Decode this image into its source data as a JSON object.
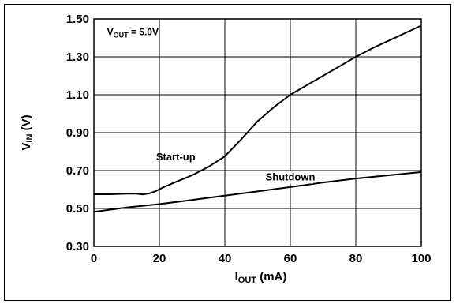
{
  "chart_data": {
    "type": "line",
    "title": "",
    "xlabel": {
      "main": "I",
      "sub": "OUT",
      "unit": " (mA)"
    },
    "ylabel": {
      "main": "V",
      "sub": "IN",
      "unit": " (V)"
    },
    "xlim": [
      0,
      100
    ],
    "ylim": [
      0.3,
      1.5
    ],
    "x_ticks": [
      0,
      20,
      40,
      60,
      80,
      100
    ],
    "x_tick_labels": [
      "0",
      "20",
      "40",
      "60",
      "80",
      "100"
    ],
    "y_ticks": [
      0.3,
      0.5,
      0.7,
      0.9,
      1.1,
      1.3,
      1.5
    ],
    "y_tick_labels": [
      "0.30",
      "0.50",
      "0.70",
      "0.90",
      "1.10",
      "1.30",
      "1.50"
    ],
    "grid": true,
    "annotation": {
      "main": "V",
      "sub": "OUT",
      "rest": " = 5.0V"
    },
    "series": [
      {
        "name": "Start-up",
        "color": "#000000",
        "x": [
          0,
          5,
          10,
          13,
          15,
          17,
          19,
          21,
          25,
          30,
          35,
          40,
          45,
          50,
          55,
          60,
          65,
          70,
          75,
          80,
          85,
          90,
          95,
          100
        ],
        "y": [
          0.575,
          0.575,
          0.578,
          0.578,
          0.574,
          0.58,
          0.592,
          0.61,
          0.64,
          0.675,
          0.72,
          0.775,
          0.865,
          0.96,
          1.035,
          1.1,
          1.15,
          1.2,
          1.25,
          1.3,
          1.345,
          1.385,
          1.425,
          1.465
        ]
      },
      {
        "name": "Shutdown",
        "color": "#000000",
        "x": [
          0,
          10,
          20,
          30,
          40,
          50,
          60,
          70,
          80,
          90,
          100
        ],
        "y": [
          0.482,
          0.505,
          0.523,
          0.545,
          0.568,
          0.59,
          0.613,
          0.637,
          0.658,
          0.675,
          0.692
        ]
      }
    ]
  }
}
